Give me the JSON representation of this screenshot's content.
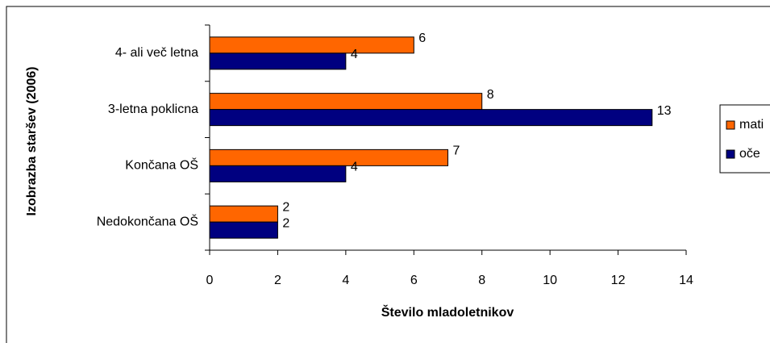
{
  "chart_data": {
    "type": "bar",
    "orientation": "horizontal",
    "x_label": "Število mladoletnikov",
    "y_label": "Izobrazba staršev (2006)",
    "categories": [
      "4- ali več letna",
      "3-letna poklicna",
      "Končana OŠ",
      "Nedokončana OŠ"
    ],
    "series": [
      {
        "name": "mati",
        "color": "#ff6600",
        "values": [
          6,
          8,
          7,
          2
        ]
      },
      {
        "name": "oče",
        "color": "#000080",
        "values": [
          4,
          13,
          4,
          2
        ]
      }
    ],
    "xlim": [
      0,
      14
    ],
    "xticks": [
      0,
      2,
      4,
      6,
      8,
      10,
      12,
      14
    ],
    "grid": false,
    "legend": "right"
  }
}
